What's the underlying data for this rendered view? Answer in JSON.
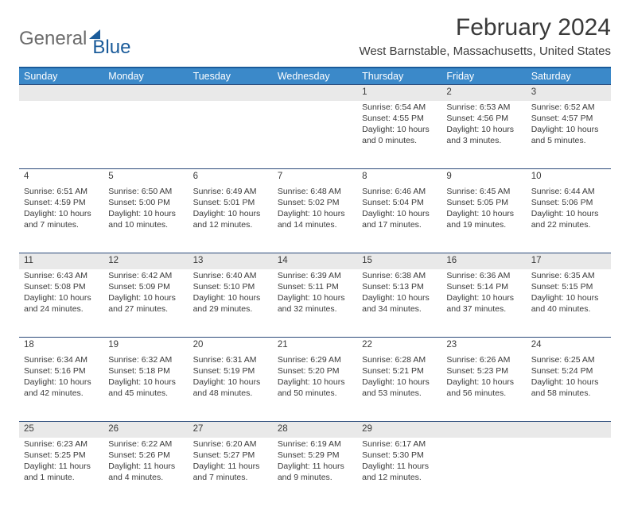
{
  "brand": {
    "word1": "General",
    "word2": "Blue"
  },
  "title": "February 2024",
  "location": "West Barnstable, Massachusetts, United States",
  "colors": {
    "header_bg": "#3b89c9",
    "header_text": "#ffffff",
    "rule": "#2b4a7a",
    "alt_row_bg": "#e9e9e9",
    "body_text": "#3a3a3a",
    "logo_gray": "#6b6b6b",
    "logo_blue": "#1a5b9a"
  },
  "daysOfWeek": [
    "Sunday",
    "Monday",
    "Tuesday",
    "Wednesday",
    "Thursday",
    "Friday",
    "Saturday"
  ],
  "weeks": [
    [
      null,
      null,
      null,
      null,
      {
        "n": "1",
        "sr": "Sunrise: 6:54 AM",
        "ss": "Sunset: 4:55 PM",
        "dl": "Daylight: 10 hours and 0 minutes."
      },
      {
        "n": "2",
        "sr": "Sunrise: 6:53 AM",
        "ss": "Sunset: 4:56 PM",
        "dl": "Daylight: 10 hours and 3 minutes."
      },
      {
        "n": "3",
        "sr": "Sunrise: 6:52 AM",
        "ss": "Sunset: 4:57 PM",
        "dl": "Daylight: 10 hours and 5 minutes."
      }
    ],
    [
      {
        "n": "4",
        "sr": "Sunrise: 6:51 AM",
        "ss": "Sunset: 4:59 PM",
        "dl": "Daylight: 10 hours and 7 minutes."
      },
      {
        "n": "5",
        "sr": "Sunrise: 6:50 AM",
        "ss": "Sunset: 5:00 PM",
        "dl": "Daylight: 10 hours and 10 minutes."
      },
      {
        "n": "6",
        "sr": "Sunrise: 6:49 AM",
        "ss": "Sunset: 5:01 PM",
        "dl": "Daylight: 10 hours and 12 minutes."
      },
      {
        "n": "7",
        "sr": "Sunrise: 6:48 AM",
        "ss": "Sunset: 5:02 PM",
        "dl": "Daylight: 10 hours and 14 minutes."
      },
      {
        "n": "8",
        "sr": "Sunrise: 6:46 AM",
        "ss": "Sunset: 5:04 PM",
        "dl": "Daylight: 10 hours and 17 minutes."
      },
      {
        "n": "9",
        "sr": "Sunrise: 6:45 AM",
        "ss": "Sunset: 5:05 PM",
        "dl": "Daylight: 10 hours and 19 minutes."
      },
      {
        "n": "10",
        "sr": "Sunrise: 6:44 AM",
        "ss": "Sunset: 5:06 PM",
        "dl": "Daylight: 10 hours and 22 minutes."
      }
    ],
    [
      {
        "n": "11",
        "sr": "Sunrise: 6:43 AM",
        "ss": "Sunset: 5:08 PM",
        "dl": "Daylight: 10 hours and 24 minutes."
      },
      {
        "n": "12",
        "sr": "Sunrise: 6:42 AM",
        "ss": "Sunset: 5:09 PM",
        "dl": "Daylight: 10 hours and 27 minutes."
      },
      {
        "n": "13",
        "sr": "Sunrise: 6:40 AM",
        "ss": "Sunset: 5:10 PM",
        "dl": "Daylight: 10 hours and 29 minutes."
      },
      {
        "n": "14",
        "sr": "Sunrise: 6:39 AM",
        "ss": "Sunset: 5:11 PM",
        "dl": "Daylight: 10 hours and 32 minutes."
      },
      {
        "n": "15",
        "sr": "Sunrise: 6:38 AM",
        "ss": "Sunset: 5:13 PM",
        "dl": "Daylight: 10 hours and 34 minutes."
      },
      {
        "n": "16",
        "sr": "Sunrise: 6:36 AM",
        "ss": "Sunset: 5:14 PM",
        "dl": "Daylight: 10 hours and 37 minutes."
      },
      {
        "n": "17",
        "sr": "Sunrise: 6:35 AM",
        "ss": "Sunset: 5:15 PM",
        "dl": "Daylight: 10 hours and 40 minutes."
      }
    ],
    [
      {
        "n": "18",
        "sr": "Sunrise: 6:34 AM",
        "ss": "Sunset: 5:16 PM",
        "dl": "Daylight: 10 hours and 42 minutes."
      },
      {
        "n": "19",
        "sr": "Sunrise: 6:32 AM",
        "ss": "Sunset: 5:18 PM",
        "dl": "Daylight: 10 hours and 45 minutes."
      },
      {
        "n": "20",
        "sr": "Sunrise: 6:31 AM",
        "ss": "Sunset: 5:19 PM",
        "dl": "Daylight: 10 hours and 48 minutes."
      },
      {
        "n": "21",
        "sr": "Sunrise: 6:29 AM",
        "ss": "Sunset: 5:20 PM",
        "dl": "Daylight: 10 hours and 50 minutes."
      },
      {
        "n": "22",
        "sr": "Sunrise: 6:28 AM",
        "ss": "Sunset: 5:21 PM",
        "dl": "Daylight: 10 hours and 53 minutes."
      },
      {
        "n": "23",
        "sr": "Sunrise: 6:26 AM",
        "ss": "Sunset: 5:23 PM",
        "dl": "Daylight: 10 hours and 56 minutes."
      },
      {
        "n": "24",
        "sr": "Sunrise: 6:25 AM",
        "ss": "Sunset: 5:24 PM",
        "dl": "Daylight: 10 hours and 58 minutes."
      }
    ],
    [
      {
        "n": "25",
        "sr": "Sunrise: 6:23 AM",
        "ss": "Sunset: 5:25 PM",
        "dl": "Daylight: 11 hours and 1 minute."
      },
      {
        "n": "26",
        "sr": "Sunrise: 6:22 AM",
        "ss": "Sunset: 5:26 PM",
        "dl": "Daylight: 11 hours and 4 minutes."
      },
      {
        "n": "27",
        "sr": "Sunrise: 6:20 AM",
        "ss": "Sunset: 5:27 PM",
        "dl": "Daylight: 11 hours and 7 minutes."
      },
      {
        "n": "28",
        "sr": "Sunrise: 6:19 AM",
        "ss": "Sunset: 5:29 PM",
        "dl": "Daylight: 11 hours and 9 minutes."
      },
      {
        "n": "29",
        "sr": "Sunrise: 6:17 AM",
        "ss": "Sunset: 5:30 PM",
        "dl": "Daylight: 11 hours and 12 minutes."
      },
      null,
      null
    ]
  ]
}
